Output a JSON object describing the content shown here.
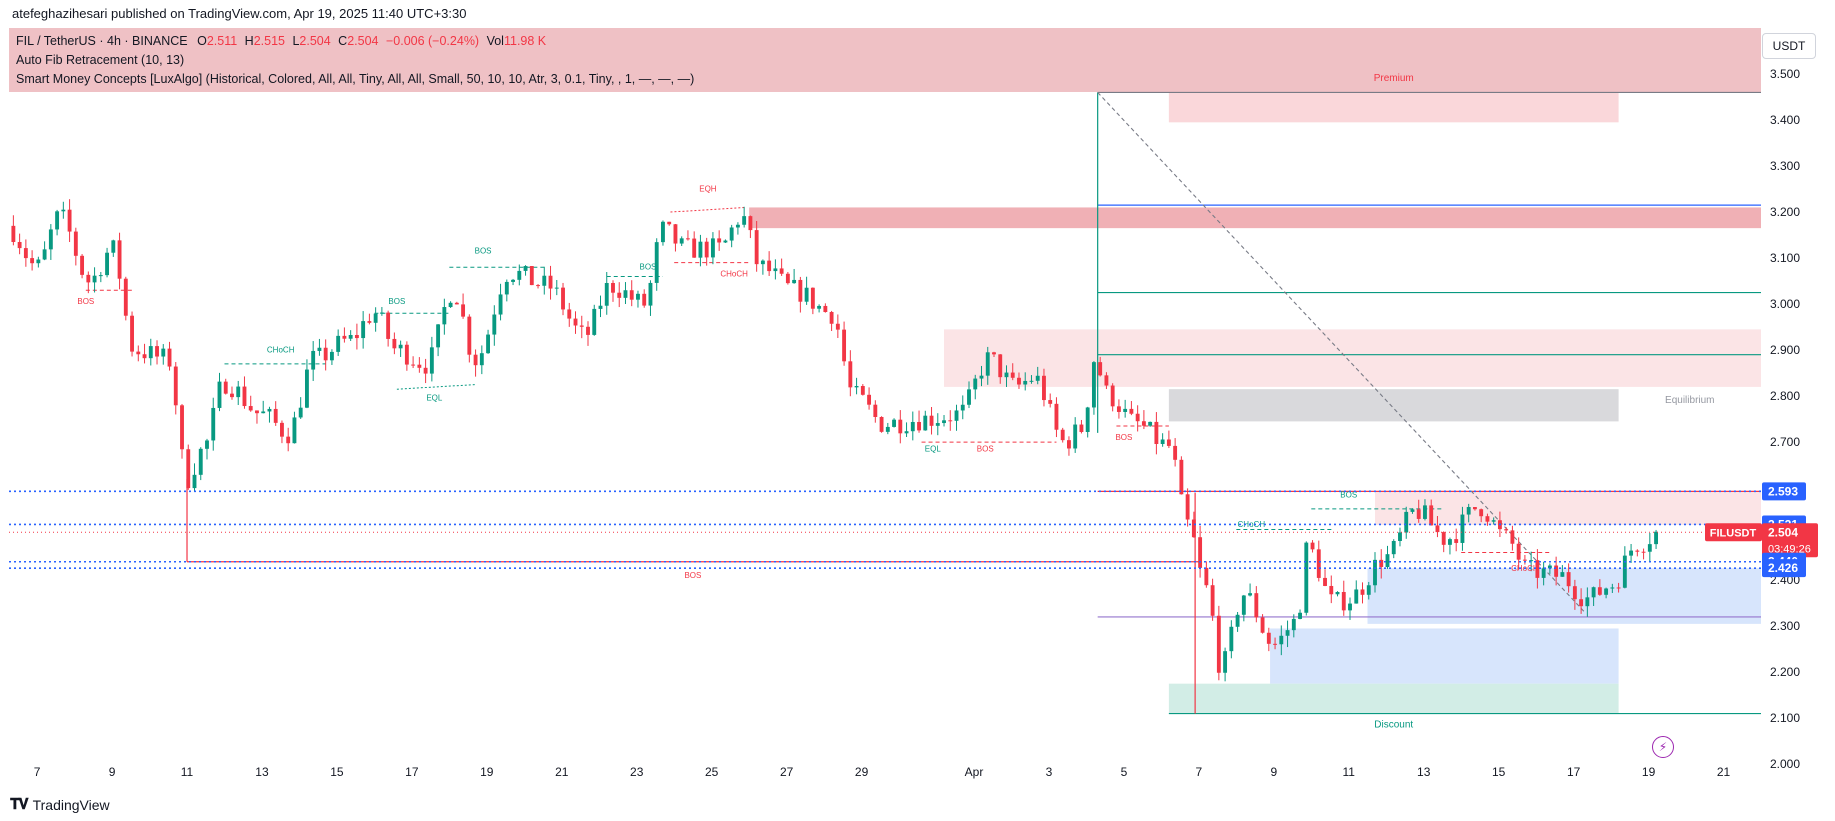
{
  "header": {
    "caption": "atefeghazihesari published on TradingView.com, Apr 19, 2025 11:40 UTC+3:30"
  },
  "legend": {
    "symbol": "FIL / TetherUS · 4h · BINANCE",
    "o_label": "O",
    "o_value": "2.511",
    "h_label": "H",
    "h_value": "2.515",
    "l_label": "L",
    "l_value": "2.504",
    "c_label": "C",
    "c_value": "2.504",
    "change": "−0.006 (−0.24%)",
    "vol_label": "Vol",
    "vol_value": "11.98 K",
    "indicator1": "Auto Fib Retracement (10, 13)",
    "indicator2": "Smart Money Concepts [LuxAlgo] (Historical, Colored, All, All, Tiny, All, All, Small, 50, 10, 10, Atr, 3, 0.1, Tiny, , 1, —, —, —)"
  },
  "currency": "USDT",
  "footer": {
    "brand": "TradingView"
  },
  "colors": {
    "up": "#089981",
    "down": "#f23645",
    "blue": "#2962ff",
    "premium_fill": "#f7c7cb",
    "discount_fill": "#bfe6dc",
    "demand_fill": "#c9dbfb",
    "equil_fill": "#c8c8cc"
  },
  "chart_data": {
    "type": "candlestick",
    "symbol": "FIL / TetherUS",
    "timeframe": "4h",
    "ylim": [
      1.97,
      3.6
    ],
    "y_ticks": [
      "2.000",
      "2.100",
      "2.200",
      "2.300",
      "2.400",
      "2.500",
      "2.600",
      "2.700",
      "2.800",
      "2.900",
      "3.000",
      "3.100",
      "3.200",
      "3.300",
      "3.400",
      "3.500"
    ],
    "x_ticks": [
      {
        "day": 7,
        "label": "7"
      },
      {
        "day": 9,
        "label": "9"
      },
      {
        "day": 11,
        "label": "11"
      },
      {
        "day": 13,
        "label": "13"
      },
      {
        "day": 15,
        "label": "15"
      },
      {
        "day": 17,
        "label": "17"
      },
      {
        "day": 19,
        "label": "19"
      },
      {
        "day": 21,
        "label": "21"
      },
      {
        "day": 23,
        "label": "23"
      },
      {
        "day": 25,
        "label": "25"
      },
      {
        "day": 27,
        "label": "27"
      },
      {
        "day": 29,
        "label": "29"
      },
      {
        "day": 32,
        "label": "Apr"
      },
      {
        "day": 34,
        "label": "3"
      },
      {
        "day": 36,
        "label": "5"
      },
      {
        "day": 38,
        "label": "7"
      },
      {
        "day": 40,
        "label": "9"
      },
      {
        "day": 42,
        "label": "11"
      },
      {
        "day": 44,
        "label": "13"
      },
      {
        "day": 46,
        "label": "15"
      },
      {
        "day": 48,
        "label": "17"
      },
      {
        "day": 50,
        "label": "19"
      },
      {
        "day": 52,
        "label": "21"
      }
    ],
    "x_range_days": [
      6.25,
      53.0
    ],
    "anchors": [
      {
        "day": 6.2,
        "price": 3.17
      },
      {
        "day": 7.0,
        "price": 3.08
      },
      {
        "day": 7.6,
        "price": 3.19
      },
      {
        "day": 8.4,
        "price": 3.05
      },
      {
        "day": 9.0,
        "price": 3.12
      },
      {
        "day": 9.6,
        "price": 2.9
      },
      {
        "day": 10.5,
        "price": 2.88
      },
      {
        "day": 11.0,
        "price": 2.62
      },
      {
        "day": 11.4,
        "price": 2.68
      },
      {
        "day": 12.0,
        "price": 2.83
      },
      {
        "day": 13.0,
        "price": 2.76
      },
      {
        "day": 13.7,
        "price": 2.72
      },
      {
        "day": 14.4,
        "price": 2.88
      },
      {
        "day": 15.3,
        "price": 2.92
      },
      {
        "day": 16.0,
        "price": 2.98
      },
      {
        "day": 16.6,
        "price": 2.9
      },
      {
        "day": 17.4,
        "price": 2.87
      },
      {
        "day": 18.1,
        "price": 3.03
      },
      {
        "day": 18.7,
        "price": 2.88
      },
      {
        "day": 19.6,
        "price": 3.07
      },
      {
        "day": 20.6,
        "price": 3.04
      },
      {
        "day": 21.6,
        "price": 2.93
      },
      {
        "day": 22.3,
        "price": 3.04
      },
      {
        "day": 23.2,
        "price": 3.0
      },
      {
        "day": 23.7,
        "price": 3.16
      },
      {
        "day": 24.3,
        "price": 3.12
      },
      {
        "day": 25.2,
        "price": 3.12
      },
      {
        "day": 25.8,
        "price": 3.19
      },
      {
        "day": 26.3,
        "price": 3.08
      },
      {
        "day": 27.2,
        "price": 3.03
      },
      {
        "day": 28.2,
        "price": 2.98
      },
      {
        "day": 28.8,
        "price": 2.8
      },
      {
        "day": 29.6,
        "price": 2.74
      },
      {
        "day": 30.6,
        "price": 2.75
      },
      {
        "day": 31.6,
        "price": 2.76
      },
      {
        "day": 32.4,
        "price": 2.88
      },
      {
        "day": 33.1,
        "price": 2.82
      },
      {
        "day": 33.6,
        "price": 2.84
      },
      {
        "day": 34.4,
        "price": 2.7
      },
      {
        "day": 34.9,
        "price": 2.73
      },
      {
        "day": 35.2,
        "price": 2.88
      },
      {
        "day": 35.6,
        "price": 2.8
      },
      {
        "day": 36.3,
        "price": 2.74
      },
      {
        "day": 37.2,
        "price": 2.69
      },
      {
        "day": 37.7,
        "price": 2.52
      },
      {
        "day": 38.2,
        "price": 2.38
      },
      {
        "day": 38.6,
        "price": 2.21
      },
      {
        "day": 39.2,
        "price": 2.37
      },
      {
        "day": 40.0,
        "price": 2.26
      },
      {
        "day": 40.6,
        "price": 2.31
      },
      {
        "day": 40.9,
        "price": 2.47
      },
      {
        "day": 41.6,
        "price": 2.35
      },
      {
        "day": 42.0,
        "price": 2.36
      },
      {
        "day": 43.0,
        "price": 2.45
      },
      {
        "day": 43.8,
        "price": 2.55
      },
      {
        "day": 44.6,
        "price": 2.49
      },
      {
        "day": 45.5,
        "price": 2.56
      },
      {
        "day": 46.2,
        "price": 2.49
      },
      {
        "day": 46.8,
        "price": 2.42
      },
      {
        "day": 47.6,
        "price": 2.41
      },
      {
        "day": 48.4,
        "price": 2.36
      },
      {
        "day": 49.0,
        "price": 2.39
      },
      {
        "day": 49.7,
        "price": 2.48
      },
      {
        "day": 50.3,
        "price": 2.504
      }
    ],
    "price_levels": [
      {
        "price": 2.593,
        "label": "2.593",
        "kind": "blue"
      },
      {
        "price": 2.521,
        "label": "2.521",
        "kind": "blue"
      },
      {
        "price": 2.504,
        "label": "2.504",
        "kind": "current"
      },
      {
        "price": 2.44,
        "label": "2.440",
        "kind": "blue"
      },
      {
        "price": 2.426,
        "label": "2.426",
        "kind": "blue"
      }
    ],
    "current_symbol": "FILUSDT",
    "countdown": "03:49:26",
    "zones": [
      {
        "name": "premium-zone",
        "x1": 37.2,
        "x2": 49.2,
        "y1": 3.395,
        "y2": 3.46,
        "fill": "#f9d3d6"
      },
      {
        "name": "supply-zone-top",
        "x1": 26.0,
        "x2": 53.0,
        "y1": 3.165,
        "y2": 3.21,
        "fill": "#eea7ad"
      },
      {
        "name": "supply-zone-mid",
        "x1": 31.2,
        "x2": 53.0,
        "y1": 2.82,
        "y2": 2.945,
        "fill": "#fbe1e3"
      },
      {
        "name": "equilibrium-zone",
        "x1": 37.2,
        "x2": 49.2,
        "y1": 2.745,
        "y2": 2.815,
        "fill": "#d5d5d8"
      },
      {
        "name": "supply-zone-low",
        "x1": 42.7,
        "x2": 53.0,
        "y1": 2.52,
        "y2": 2.593,
        "fill": "#fbe1e3"
      },
      {
        "name": "demand-zone-upper",
        "x1": 42.5,
        "x2": 53.0,
        "y1": 2.305,
        "y2": 2.426,
        "fill": "#d3e2fc"
      },
      {
        "name": "demand-zone-lower",
        "x1": 39.9,
        "x2": 49.2,
        "y1": 2.175,
        "y2": 2.295,
        "fill": "#d3e2fc"
      },
      {
        "name": "discount-zone",
        "x1": 37.2,
        "x2": 49.2,
        "y1": 2.11,
        "y2": 2.175,
        "fill": "#cdebe3"
      }
    ],
    "hlines": [
      {
        "name": "fib-top",
        "x1": 35.3,
        "x2": 53.0,
        "price": 3.46,
        "color": "#787b86"
      },
      {
        "name": "fib-0.236",
        "x1": 35.3,
        "x2": 53.0,
        "price": 3.215,
        "color": "#2962ff"
      },
      {
        "name": "fib-0.382",
        "x1": 35.3,
        "x2": 53.0,
        "price": 3.025,
        "color": "#089981"
      },
      {
        "name": "fib-0.5",
        "x1": 35.3,
        "x2": 53.0,
        "price": 2.89,
        "color": "#089981"
      },
      {
        "name": "fib-0.786",
        "x1": 35.3,
        "x2": 53.0,
        "price": 2.593,
        "color": "#f23645"
      },
      {
        "name": "fib-1.0",
        "x1": 35.3,
        "x2": 53.0,
        "price": 2.32,
        "color": "#9575cd"
      },
      {
        "name": "fib-bottom",
        "x1": 37.2,
        "x2": 53.0,
        "price": 2.11,
        "color": "#089981"
      },
      {
        "name": "bos-long-red",
        "x1": 11.0,
        "x2": 38.0,
        "price": 2.44,
        "color": "#f23645"
      }
    ],
    "labels": [
      {
        "text": "Premium",
        "x": 43.2,
        "price": 3.485,
        "color": "#f23645"
      },
      {
        "text": "Equilibrium",
        "x": 51.1,
        "price": 2.785,
        "color": "#9598a1"
      },
      {
        "text": "Discount",
        "x": 43.2,
        "price": 2.08,
        "color": "#089981"
      },
      {
        "text": "BOS",
        "x": 24.5,
        "price": 2.405,
        "color": "#f23645"
      },
      {
        "text": "BOS",
        "x": 8.3,
        "price": 3.0,
        "color": "#f23645"
      },
      {
        "text": "CHoCH",
        "x": 13.5,
        "price": 2.895,
        "color": "#089981"
      },
      {
        "text": "BOS",
        "x": 16.6,
        "price": 3.0,
        "color": "#089981"
      },
      {
        "text": "BOS",
        "x": 18.9,
        "price": 3.11,
        "color": "#089981"
      },
      {
        "text": "EQL",
        "x": 17.6,
        "price": 2.79,
        "color": "#089981"
      },
      {
        "text": "BOS",
        "x": 23.3,
        "price": 3.075,
        "color": "#089981"
      },
      {
        "text": "EQH",
        "x": 24.9,
        "price": 3.245,
        "color": "#f23645"
      },
      {
        "text": "CHoCH",
        "x": 25.6,
        "price": 3.06,
        "color": "#f23645"
      },
      {
        "text": "EQL",
        "x": 30.9,
        "price": 2.68,
        "color": "#089981"
      },
      {
        "text": "BOS",
        "x": 32.3,
        "price": 2.68,
        "color": "#f23645"
      },
      {
        "text": "BOS",
        "x": 36.0,
        "price": 2.705,
        "color": "#f23645"
      },
      {
        "text": "CHoCH",
        "x": 39.4,
        "price": 2.515,
        "color": "#089981"
      },
      {
        "text": "BOS",
        "x": 42.0,
        "price": 2.58,
        "color": "#089981"
      },
      {
        "text": "CHoCH",
        "x": 46.7,
        "price": 2.42,
        "color": "#f23645"
      }
    ]
  }
}
